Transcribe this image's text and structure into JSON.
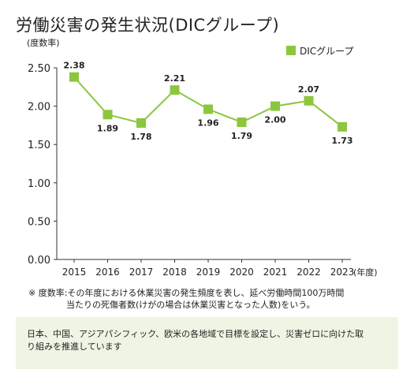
{
  "title": "労働災害の発生状況(DICグループ)",
  "chart_data": {
    "type": "line",
    "title": "労働災害の発生状況(DICグループ)",
    "ylabel": "(度数率)",
    "xlabel": "(年度)",
    "ylim": [
      0,
      2.5
    ],
    "yticks": [
      "0.00",
      "0.50",
      "1.00",
      "1.50",
      "2.00",
      "2.50"
    ],
    "categories": [
      "2015",
      "2016",
      "2017",
      "2018",
      "2019",
      "2020",
      "2021",
      "2022",
      "2023"
    ],
    "series": [
      {
        "name": "DICグループ",
        "values": [
          2.38,
          1.89,
          1.78,
          2.21,
          1.96,
          1.79,
          2.0,
          2.07,
          1.73
        ],
        "labels": [
          "2.38",
          "1.89",
          "1.78",
          "2.21",
          "1.96",
          "1.79",
          "2.00",
          "2.07",
          "1.73"
        ],
        "color": "#8cc63f"
      }
    ],
    "legend": "top-right",
    "grid": false
  },
  "note": {
    "line1": "※ 度数率:その年度における休業災害の発生頻度を表し、延べ労働時間100万時間",
    "line2": "当たりの死傷者数(けがの場合は休業災害となった人数)をいう。"
  },
  "panel": {
    "line1": "日本、中国、アジアパシフィック、欧米の各地域で目標を設定し、災害ゼロに向けた取",
    "line2": "り組みを推進しています"
  }
}
